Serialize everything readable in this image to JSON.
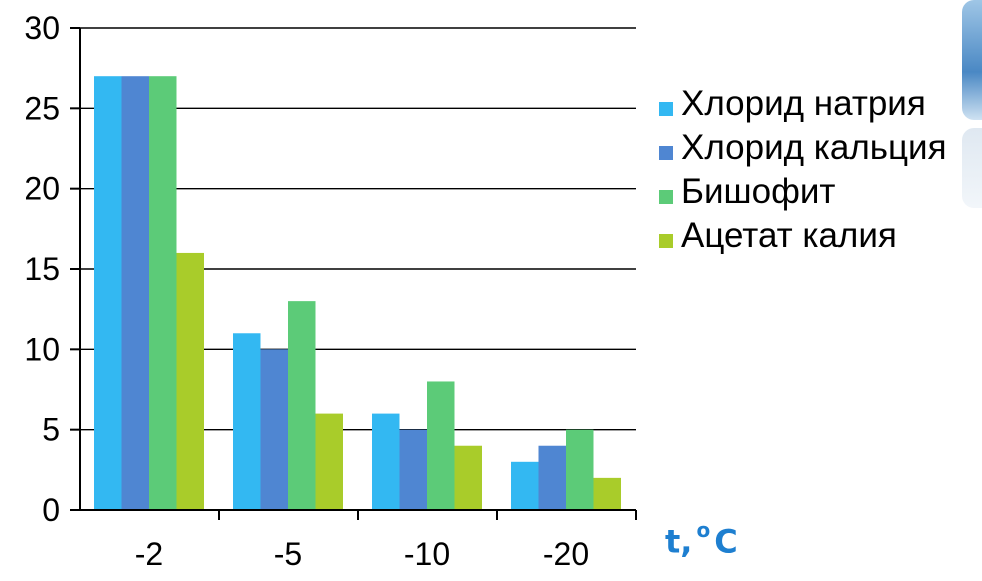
{
  "chart_data": {
    "type": "bar",
    "categories": [
      "-2",
      "-5",
      "-10",
      "-20"
    ],
    "series": [
      {
        "name": "Хлорид натрия",
        "values": [
          27,
          11,
          6,
          3
        ],
        "color": "#33b8f2"
      },
      {
        "name": "Хлорид кальция",
        "values": [
          27,
          10,
          5,
          4
        ],
        "color": "#4f86d2"
      },
      {
        "name": "Бишофит",
        "values": [
          27,
          13,
          8,
          5
        ],
        "color": "#5ccb78"
      },
      {
        "name": "Ацетат калия",
        "values": [
          16,
          6,
          4,
          2
        ],
        "color": "#a9cc2a"
      }
    ],
    "ylim": [
      0,
      30
    ],
    "yticks": [
      0,
      5,
      10,
      15,
      20,
      25,
      30
    ],
    "grid": true,
    "legend_position": "right",
    "title": "",
    "xlabel": "",
    "ylabel": ""
  },
  "unit_label": {
    "prefix": "t,",
    "degree": "o",
    "suffix": "C"
  }
}
